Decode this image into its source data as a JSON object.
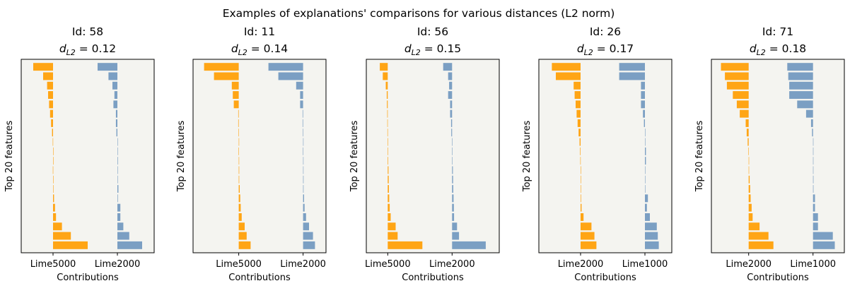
{
  "figure_title": "Examples of explanations' comparisons for various distances (L2 norm)",
  "colors": {
    "left_series": "#FFA515",
    "right_series": "#7B9FC3",
    "plot_background": "#F4F4F0"
  },
  "chart_data": [
    {
      "type": "bar",
      "orientation": "horizontal",
      "title_id": "Id: 58",
      "title_metric": "0.12",
      "xlabel": "Contributions",
      "ylabel": "Top 20 features",
      "xticklabels": [
        "Lime5000",
        "Lime2000"
      ],
      "grid": false,
      "series": [
        {
          "name": "Lime5000",
          "values": [
            -0.2,
            -0.1,
            -0.06,
            -0.05,
            -0.04,
            -0.03,
            -0.02,
            -0.01,
            -0.003,
            0,
            0,
            -0.002,
            0,
            0,
            0.01,
            0.02,
            0.03,
            0.09,
            0.18,
            0.35
          ]
        },
        {
          "name": "Lime2000",
          "values": [
            -0.2,
            -0.09,
            -0.05,
            -0.03,
            -0.04,
            -0.015,
            -0.015,
            -0.01,
            0,
            0,
            0.005,
            0,
            0,
            0.01,
            0.005,
            0.03,
            0.03,
            0.06,
            0.12,
            0.25
          ]
        }
      ]
    },
    {
      "type": "bar",
      "orientation": "horizontal",
      "title_id": "Id: 11",
      "title_metric": "0.14",
      "xlabel": "Contributions",
      "ylabel": "Top 20 features",
      "xticklabels": [
        "Lime5000",
        "Lime2000"
      ],
      "grid": false,
      "series": [
        {
          "name": "Lime5000",
          "values": [
            -0.35,
            -0.25,
            -0.07,
            -0.06,
            -0.05,
            -0.005,
            -0.005,
            -0.003,
            0,
            -0.003,
            0.003,
            0.005,
            0.005,
            0.01,
            0.015,
            0.02,
            0.03,
            0.06,
            0.08,
            0.12
          ]
        },
        {
          "name": "Lime2000",
          "values": [
            -0.35,
            -0.25,
            -0.07,
            -0.03,
            -0.03,
            -0.005,
            -0.005,
            -0.003,
            0,
            -0.003,
            0.003,
            0.003,
            0.005,
            0.005,
            0.01,
            0.015,
            0.03,
            0.06,
            0.1,
            0.12
          ]
        }
      ]
    },
    {
      "type": "bar",
      "orientation": "horizontal",
      "title_id": "Id: 56",
      "title_metric": "0.15",
      "xlabel": "Contributions",
      "ylabel": "Top 20 features",
      "xticklabels": [
        "Lime5000",
        "Lime2000"
      ],
      "grid": false,
      "series": [
        {
          "name": "Lime5000",
          "values": [
            -0.08,
            -0.05,
            -0.02,
            -0.01,
            -0.008,
            -0.005,
            -0.004,
            -0.003,
            0,
            0,
            0.005,
            0.008,
            0.01,
            0.012,
            0.015,
            0.02,
            0.03,
            0.08,
            0.1,
            0.35
          ]
        },
        {
          "name": "Lime2000",
          "values": [
            -0.09,
            -0.04,
            -0.03,
            -0.04,
            -0.02,
            -0.02,
            -0.01,
            -0.008,
            0,
            0,
            0.002,
            0.008,
            0.01,
            0.012,
            0.015,
            0.018,
            0.02,
            0.05,
            0.07,
            0.34
          ]
        }
      ]
    },
    {
      "type": "bar",
      "orientation": "horizontal",
      "title_id": "Id: 26",
      "title_metric": "0.17",
      "xlabel": "Contributions",
      "ylabel": "Top 20 features",
      "xticklabels": [
        "Lime2000",
        "Lime1000"
      ],
      "grid": false,
      "series": [
        {
          "name": "Lime2000",
          "values": [
            -0.29,
            -0.25,
            -0.07,
            -0.06,
            -0.05,
            -0.04,
            -0.03,
            -0.02,
            -0.01,
            -0.005,
            -0.003,
            0,
            0,
            0.003,
            0.005,
            0.01,
            0.03,
            0.11,
            0.14,
            0.16
          ]
        },
        {
          "name": "Lime1000",
          "values": [
            -0.26,
            -0.26,
            -0.04,
            -0.04,
            -0.04,
            -0.02,
            -0.01,
            0,
            0,
            0.01,
            0.01,
            0,
            0,
            0,
            0.03,
            0.02,
            0.05,
            0.12,
            0.13,
            0.14
          ]
        }
      ]
    },
    {
      "type": "bar",
      "orientation": "horizontal",
      "title_id": "Id: 71",
      "title_metric": "0.18",
      "xlabel": "Contributions",
      "ylabel": "Top 20 features",
      "xticklabels": [
        "Lime2000",
        "Lime1000"
      ],
      "grid": false,
      "series": [
        {
          "name": "Lime2000",
          "values": [
            -0.28,
            -0.24,
            -0.22,
            -0.16,
            -0.12,
            -0.09,
            -0.03,
            -0.02,
            -0.01,
            -0.003,
            0,
            0,
            0.01,
            0.015,
            0.02,
            0.03,
            0.04,
            0.11,
            0.2,
            0.25
          ]
        },
        {
          "name": "Lime1000",
          "values": [
            -0.26,
            -0.25,
            -0.24,
            -0.24,
            -0.16,
            -0.07,
            -0.02,
            -0.01,
            0,
            0,
            0,
            0,
            0.005,
            0.005,
            0.02,
            0.02,
            0.05,
            0.05,
            0.2,
            0.22
          ]
        }
      ]
    }
  ]
}
